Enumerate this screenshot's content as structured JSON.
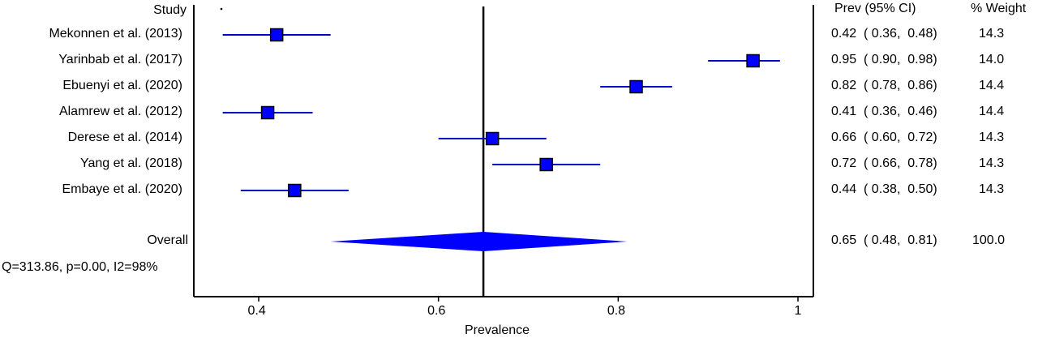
{
  "chart_data": {
    "type": "forest",
    "xlabel": "Prevalence",
    "xlim": [
      0.3,
      1.0
    ],
    "xticks": [
      0.4,
      0.6,
      0.8,
      1.0
    ],
    "xtick_labels": [
      "0.4",
      "0.6",
      "0.8",
      "1"
    ],
    "pooled_line": 0.65,
    "headers": {
      "study": "Study",
      "estimate": "Prev (95% CI)",
      "weight": "% Weight"
    },
    "studies": [
      {
        "label": "Mekonnen et al. (2013)",
        "est": 0.42,
        "lo": 0.36,
        "hi": 0.48,
        "weight": 14.3,
        "ci_text": "0.42  ( 0.36,  0.48)",
        "weight_text": "14.3"
      },
      {
        "label": "Yarinbab et al. (2017)",
        "est": 0.95,
        "lo": 0.9,
        "hi": 0.98,
        "weight": 14.0,
        "ci_text": "0.95  ( 0.90,  0.98)",
        "weight_text": "14.0"
      },
      {
        "label": "Ebuenyi et al. (2020)",
        "est": 0.82,
        "lo": 0.78,
        "hi": 0.86,
        "weight": 14.4,
        "ci_text": "0.82  ( 0.78,  0.86)",
        "weight_text": "14.4"
      },
      {
        "label": "Alamrew et al. (2012)",
        "est": 0.41,
        "lo": 0.36,
        "hi": 0.46,
        "weight": 14.4,
        "ci_text": "0.41  ( 0.36,  0.46)",
        "weight_text": "14.4"
      },
      {
        "label": "Derese et al. (2014)",
        "est": 0.66,
        "lo": 0.6,
        "hi": 0.72,
        "weight": 14.3,
        "ci_text": "0.66  ( 0.60,  0.72)",
        "weight_text": "14.3"
      },
      {
        "label": "Yang et al. (2018)",
        "est": 0.72,
        "lo": 0.66,
        "hi": 0.78,
        "weight": 14.3,
        "ci_text": "0.72  ( 0.66,  0.78)",
        "weight_text": "14.3"
      },
      {
        "label": "Embaye et al. (2020)",
        "est": 0.44,
        "lo": 0.38,
        "hi": 0.5,
        "weight": 14.3,
        "ci_text": "0.44  ( 0.38,  0.50)",
        "weight_text": "14.3"
      }
    ],
    "overall": {
      "label": "Overall",
      "est": 0.65,
      "lo": 0.48,
      "hi": 0.81,
      "weight": 100.0,
      "ci_text": "0.65  ( 0.48,  0.81)",
      "weight_text": "100.0"
    },
    "heterogeneity": "Q=313.86, p=0.00, I2=98%",
    "colors": {
      "marker": "#0000ff",
      "marker_border": "#000000",
      "ci_line": "#0000cc",
      "diamond": "#0000ff",
      "axis": "#000000"
    }
  }
}
